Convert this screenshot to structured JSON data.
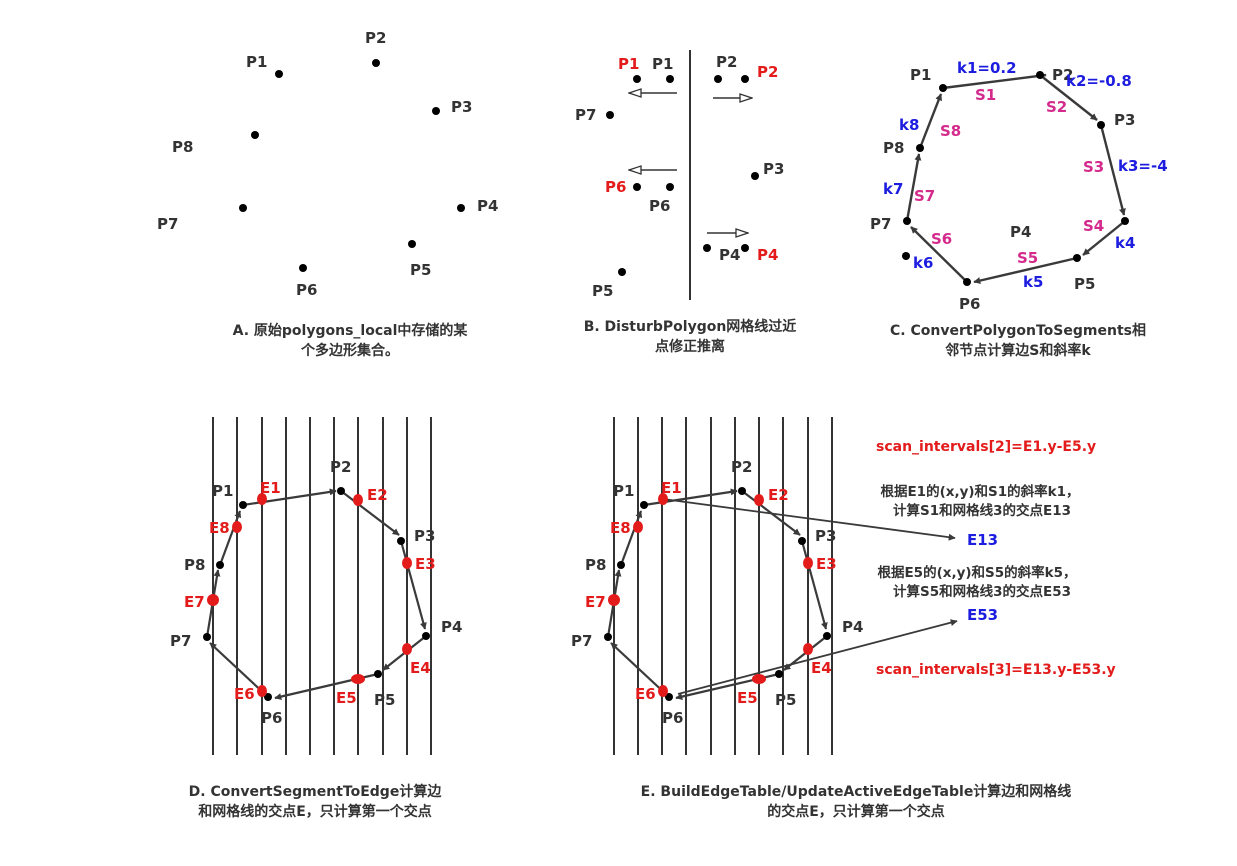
{
  "panel_a": {
    "labels": {
      "p1": "P1",
      "p2": "P2",
      "p3": "P3",
      "p4": "P4",
      "p5": "P5",
      "p6": "P6",
      "p7": "P7",
      "p8": "P8"
    },
    "caption": [
      "A. 原始polygons_local中存储的某",
      "个多边形集合。"
    ]
  },
  "panel_b": {
    "labels": {
      "p1": "P1",
      "p1_moved": "P1",
      "p2": "P2",
      "p2_moved": "P2",
      "p3": "P3",
      "p4": "P4",
      "p4_moved": "P4",
      "p5": "P5",
      "p6": "P6",
      "p6_moved": "P6",
      "p7": "P7"
    },
    "caption": [
      "B. DisturbPolygon网格线过近",
      "点修正推离"
    ]
  },
  "panel_c": {
    "labels": {
      "p1": "P1",
      "p2": "P2",
      "p3": "P3",
      "p4": "P4",
      "p5": "P5",
      "p6": "P6",
      "p7": "P7",
      "p8": "P8"
    },
    "segments": {
      "s1": "S1",
      "s2": "S2",
      "s3": "S3",
      "s4": "S4",
      "s5": "S5",
      "s6": "S6",
      "s7": "S7",
      "s8": "S8"
    },
    "slopes": {
      "k1": "k1=0.2",
      "k2": "k2=-0.8",
      "k3": "k3=-4",
      "k4": "k4",
      "k5": "k5",
      "k6": "k6",
      "k7": "k7",
      "k8": "k8"
    },
    "caption": [
      "C. ConvertPolygonToSegments相",
      "邻节点计算边S和斜率k"
    ]
  },
  "panel_d": {
    "labels": {
      "p1": "P1",
      "p2": "P2",
      "p3": "P3",
      "p4": "P4",
      "p5": "P5",
      "p6": "P6",
      "p7": "P7",
      "p8": "P8"
    },
    "edges": {
      "e1": "E1",
      "e2": "E2",
      "e3": "E3",
      "e4": "E4",
      "e5": "E5",
      "e6": "E6",
      "e7": "E7",
      "e8": "E8"
    },
    "caption": [
      "D. ConvertSegmentToEdge计算边",
      "和网格线的交点E，只计算第一个交点"
    ]
  },
  "panel_e": {
    "labels": {
      "p1": "P1",
      "p2": "P2",
      "p3": "P3",
      "p4": "P4",
      "p5": "P5",
      "p6": "P6",
      "p7": "P7",
      "p8": "P8"
    },
    "edges": {
      "e1": "E1",
      "e2": "E2",
      "e3": "E3",
      "e4": "E4",
      "e5": "E5",
      "e6": "E6",
      "e7": "E7",
      "e8": "E8",
      "e13": "E13",
      "e53": "E53"
    },
    "annotations": {
      "scan2": "scan_intervals[2]=E1.y-E5.y",
      "note1_line1": "根据E1的(x,y)和S1的斜率k1，",
      "note1_line2": "计算S1和网格线3的交点E13",
      "note2_line1": "根据E5的(x,y)和S5的斜率k5，",
      "note2_line2": "计算S5和网格线3的交点E53",
      "scan3": "scan_intervals[3]=E13.y-E53.y"
    },
    "caption": [
      "E. BuildEdgeTable/UpdateActiveEdgeTable计算边和网格线",
      "的交点E，只计算第一个交点"
    ]
  },
  "colors": {
    "text": "#333333",
    "red": "#e31b1b",
    "blue": "#1d1de0",
    "magenta": "#d42a8c",
    "line": "#333333"
  }
}
